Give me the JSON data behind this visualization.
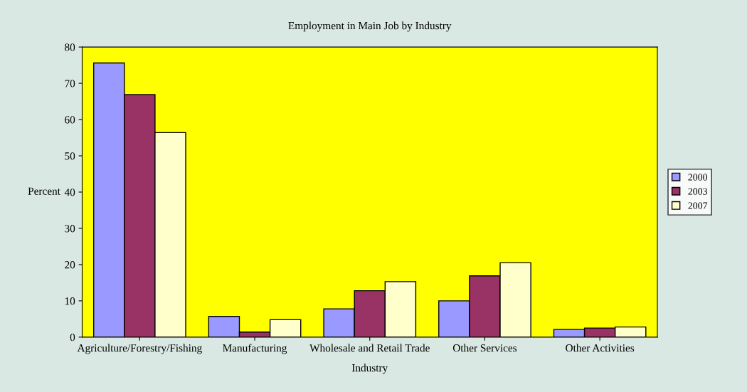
{
  "chart_data": {
    "type": "bar",
    "title": "Employment in Main Job by Industry",
    "xlabel": "Industry",
    "ylabel": "Percent",
    "categories": [
      "Agriculture/Forestry/Fishing",
      "Manufacturing",
      "Wholesale and Retail Trade",
      "Other Services",
      "Other Activities"
    ],
    "series": [
      {
        "name": "2000",
        "color": "#9999ff",
        "values": [
          75.6,
          5.7,
          7.8,
          10.0,
          2.1
        ]
      },
      {
        "name": "2003",
        "color": "#993366",
        "values": [
          66.9,
          1.4,
          12.8,
          16.9,
          2.5
        ]
      },
      {
        "name": "2007",
        "color": "#ffffcc",
        "values": [
          56.4,
          4.8,
          15.3,
          20.5,
          2.8
        ]
      }
    ],
    "ylim": [
      0,
      80
    ],
    "yticks": [
      0,
      10,
      20,
      30,
      40,
      50,
      60,
      70,
      80
    ],
    "grid": false,
    "legend": "right"
  }
}
